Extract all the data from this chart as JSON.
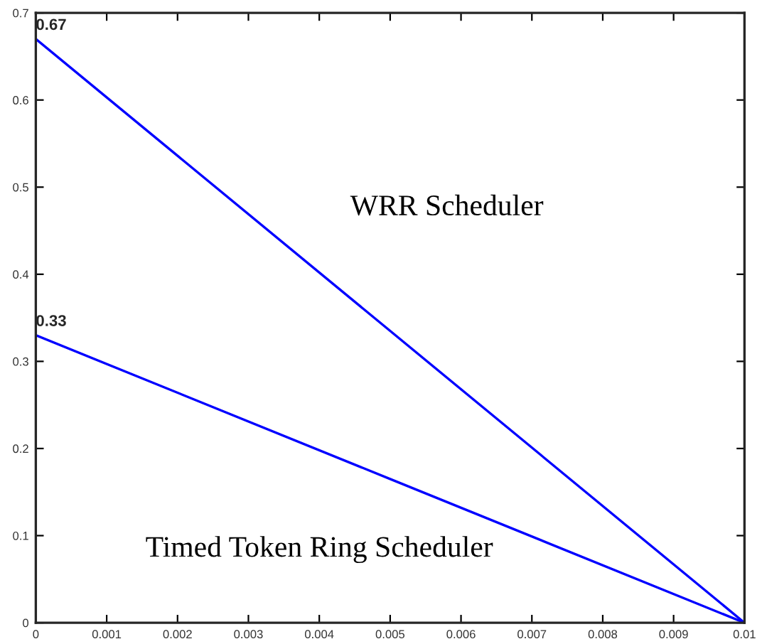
{
  "chart_data": {
    "type": "line",
    "x": [
      0,
      0.005,
      0.01
    ],
    "series": [
      {
        "name": "WRR Scheduler",
        "color": "#0000ff",
        "values": [
          0.67,
          0.335,
          0
        ]
      },
      {
        "name": "Timed Token Ring Scheduler",
        "color": "#0000ff",
        "values": [
          0.33,
          0.165,
          0
        ]
      }
    ],
    "annotations": [
      {
        "text": "0.67",
        "x": 0,
        "y": 0.67
      },
      {
        "text": "0.33",
        "x": 0,
        "y": 0.33
      }
    ],
    "xlim": [
      0,
      0.01
    ],
    "xticks": [
      0,
      0.001,
      0.002,
      0.003,
      0.004,
      0.005,
      0.006,
      0.007,
      0.008,
      0.009,
      0.01
    ],
    "ylim": [
      0,
      0.7
    ],
    "yticks": [
      0,
      0.1,
      0.2,
      0.3,
      0.4,
      0.5,
      0.6,
      0.7
    ],
    "grid": false,
    "legend": false,
    "marker": "none",
    "line_style": "solid"
  }
}
